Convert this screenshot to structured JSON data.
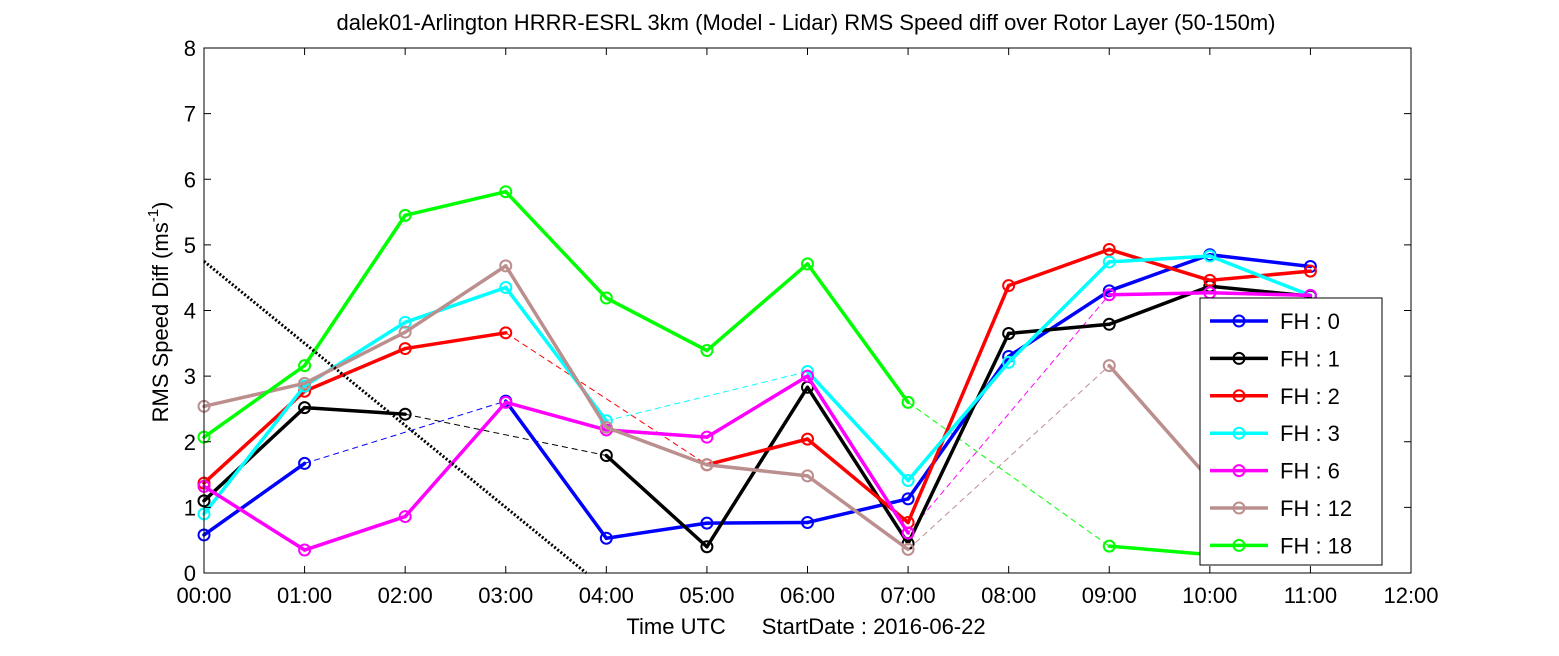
{
  "chart_data": {
    "type": "line",
    "title": "dalek01-Arlington HRRR-ESRL 3km (Model - Lidar) RMS Speed diff over Rotor Layer (50-150m)",
    "xlabel": "Time UTC",
    "xlabel_suffix": "StartDate : 2016-06-22",
    "ylabel": "RMS Speed Diff (ms",
    "ylabel_superscript": "-1",
    "ylabel_close": ")",
    "xlim": [
      0,
      12
    ],
    "ylim": [
      0,
      8
    ],
    "x_ticks": [
      0,
      1,
      2,
      3,
      4,
      5,
      6,
      7,
      8,
      9,
      10,
      11,
      12
    ],
    "x_tick_labels": [
      "00:00",
      "01:00",
      "02:00",
      "03:00",
      "04:00",
      "05:00",
      "06:00",
      "07:00",
      "08:00",
      "09:00",
      "10:00",
      "11:00",
      "12:00"
    ],
    "y_ticks": [
      0,
      1,
      2,
      3,
      4,
      5,
      6,
      7,
      8
    ],
    "y_tick_labels": [
      "0",
      "1",
      "2",
      "3",
      "4",
      "5",
      "6",
      "7",
      "8"
    ],
    "grid": false,
    "legend_position": "right",
    "series": [
      {
        "name": "FH : 0",
        "color": "#0000ff",
        "x": [
          0,
          1,
          3,
          4,
          5,
          6,
          7,
          8,
          9,
          10,
          11
        ],
        "y": [
          0.58,
          1.67,
          2.62,
          0.53,
          0.76,
          0.77,
          1.13,
          3.3,
          4.3,
          4.85,
          4.67
        ]
      },
      {
        "name": "FH : 1",
        "color": "#000000",
        "x": [
          0,
          1,
          2,
          4,
          5,
          6,
          7,
          8,
          9,
          10,
          11
        ],
        "y": [
          1.1,
          2.52,
          2.42,
          1.79,
          0.4,
          2.83,
          0.45,
          3.65,
          3.79,
          4.37,
          4.22
        ]
      },
      {
        "name": "FH : 2",
        "color": "#ff0000",
        "x": [
          0,
          1,
          2,
          3,
          5,
          6,
          7,
          8,
          9,
          10,
          11
        ],
        "y": [
          1.37,
          2.77,
          3.42,
          3.66,
          1.65,
          2.04,
          0.77,
          4.38,
          4.93,
          4.46,
          4.6
        ]
      },
      {
        "name": "FH : 3",
        "color": "#00ffff",
        "x": [
          0,
          1,
          2,
          3,
          4,
          6,
          7,
          8,
          9,
          10,
          11
        ],
        "y": [
          0.9,
          2.85,
          3.82,
          4.35,
          2.32,
          3.07,
          1.41,
          3.21,
          4.74,
          4.83,
          4.23
        ]
      },
      {
        "name": "FH : 6",
        "color": "#ff00ff",
        "x": [
          0,
          1,
          2,
          3,
          4,
          5,
          6,
          7,
          9,
          10,
          11
        ],
        "y": [
          1.32,
          0.35,
          0.86,
          2.6,
          2.18,
          2.07,
          3.0,
          0.61,
          4.24,
          4.27,
          4.23
        ]
      },
      {
        "name": "FH : 12",
        "color": "#bc8f8f",
        "x": [
          0,
          1,
          2,
          3,
          4,
          5,
          6,
          7,
          9,
          10
        ],
        "y": [
          2.54,
          2.89,
          3.67,
          4.68,
          2.22,
          1.65,
          1.48,
          0.36,
          3.16,
          1.42
        ]
      },
      {
        "name": "FH : 18",
        "color": "#00ff00",
        "x": [
          0,
          1,
          2,
          3,
          4,
          5,
          6,
          7,
          9,
          10
        ],
        "y": [
          2.07,
          3.16,
          5.45,
          5.81,
          4.19,
          3.39,
          4.71,
          2.6,
          0.41,
          0.28
        ]
      }
    ],
    "trend_line": {
      "color": "#000000",
      "x": [
        0,
        3.8
      ],
      "y": [
        4.75,
        0
      ]
    }
  }
}
